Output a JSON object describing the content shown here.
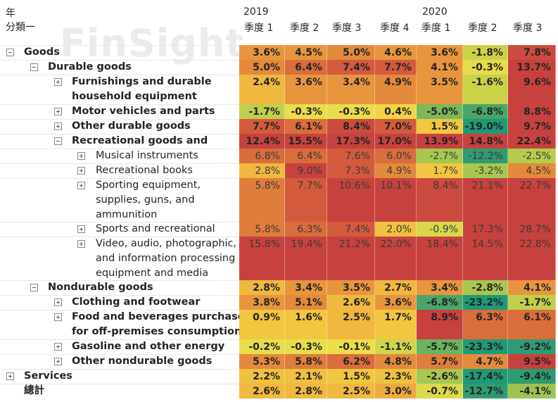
{
  "header": {
    "row_label_1": "年",
    "row_label_2": "分類一",
    "years": [
      "2019",
      "2020"
    ],
    "quarters": [
      "季度 1",
      "季度 2",
      "季度 3",
      "季度 4",
      "季度 1",
      "季度 2",
      "季度 3"
    ]
  },
  "watermark": "FinSight",
  "rows": [
    {
      "level": 0,
      "exp": "minus",
      "bold": true,
      "lines": [
        "Goods"
      ],
      "values": [
        "3.6%",
        "4.5%",
        "5.0%",
        "4.6%",
        "3.6%",
        "-1.8%",
        "7.8%"
      ],
      "colors": [
        "#e8963d",
        "#e8963d",
        "#e38a3c",
        "#e8963d",
        "#e8963d",
        "#cbd24a",
        "#cc4a3f"
      ]
    },
    {
      "level": 1,
      "exp": "minus",
      "bold": true,
      "lines": [
        "Durable goods"
      ],
      "values": [
        "5.0%",
        "6.4%",
        "7.4%",
        "7.7%",
        "4.1%",
        "-0.3%",
        "13.7%"
      ],
      "colors": [
        "#e38a3c",
        "#d96d3c",
        "#d45a3d",
        "#d45a3d",
        "#e8963d",
        "#e6dc4b",
        "#c7423e"
      ]
    },
    {
      "level": 2,
      "exp": "plus",
      "bold": true,
      "lines": [
        "Furnishings and durable",
        "household equipment"
      ],
      "values": [
        "2.4%",
        "3.6%",
        "3.4%",
        "4.9%",
        "3.5%",
        "-1.6%",
        "9.6%"
      ],
      "colors": [
        "#f0b83f",
        "#e8963d",
        "#e8963d",
        "#e38a3c",
        "#e8963d",
        "#cbd24a",
        "#c7423e"
      ]
    },
    {
      "level": 2,
      "exp": "plus",
      "bold": true,
      "lines": [
        "Motor vehicles and parts"
      ],
      "values": [
        "-1.7%",
        "-0.3%",
        "-0.3%",
        "0.4%",
        "-5.0%",
        "-6.8%",
        "8.8%"
      ],
      "colors": [
        "#bfd04c",
        "#e8de4b",
        "#e8de4b",
        "#f0d448",
        "#7cb85c",
        "#4aa56a",
        "#c7423e"
      ]
    },
    {
      "level": 2,
      "exp": "plus",
      "bold": true,
      "lines": [
        "Other durable goods"
      ],
      "values": [
        "7.7%",
        "6.1%",
        "8.4%",
        "7.0%",
        "1.5%",
        "-19.0%",
        "9.7%"
      ],
      "colors": [
        "#d45a3d",
        "#da6e3c",
        "#cc4a3f",
        "#d45a3d",
        "#f3c63f",
        "#1f9a76",
        "#c7423e"
      ]
    },
    {
      "level": 2,
      "exp": "minus",
      "bold": true,
      "lines": [
        "Recreational goods and"
      ],
      "values": [
        "12.4%",
        "15.5%",
        "17.3%",
        "17.0%",
        "13.9%",
        "14.8%",
        "22.4%"
      ],
      "colors": [
        "#c7423e",
        "#c7423e",
        "#c7423e",
        "#c7423e",
        "#c7423e",
        "#c7423e",
        "#c7423e"
      ]
    },
    {
      "level": 3,
      "exp": "plus",
      "bold": false,
      "lines": [
        "Musical instruments"
      ],
      "values": [
        "6.8%",
        "6.4%",
        "7.6%",
        "6.0%",
        "-2.7%",
        "-12.2%",
        "-2.5%"
      ],
      "colors": [
        "#d96d3c",
        "#d96d3c",
        "#d45a3d",
        "#da6e3c",
        "#a8c750",
        "#2e9b72",
        "#b5cc4f"
      ]
    },
    {
      "level": 3,
      "exp": "plus",
      "bold": false,
      "lines": [
        "Recreational books"
      ],
      "values": [
        "2.8%",
        "9.0%",
        "7.3%",
        "4.9%",
        "1.7%",
        "-3.2%",
        "4.5%"
      ],
      "colors": [
        "#f0b83f",
        "#c7423e",
        "#d45a3d",
        "#e38a3c",
        "#f3c63f",
        "#a8c750",
        "#e38a3c"
      ]
    },
    {
      "level": 3,
      "exp": "plus",
      "bold": false,
      "lines": [
        "Sporting equipment,",
        "supplies, guns, and",
        "ammunition"
      ],
      "values": [
        "5.8%",
        "7.7%",
        "10.6%",
        "10.1%",
        "8.4%",
        "21.1%",
        "22.7%"
      ],
      "colors": [
        "#df7d3c",
        "#d45a3d",
        "#c7423e",
        "#c7423e",
        "#cc4a3f",
        "#c7423e",
        "#c7423e"
      ]
    },
    {
      "level": 3,
      "exp": "plus",
      "bold": false,
      "lines": [
        "Sports and recreational"
      ],
      "values": [
        "5.8%",
        "6.3%",
        "7.4%",
        "2.0%",
        "-0.9%",
        "17.3%",
        "28.7%"
      ],
      "colors": [
        "#df7d3c",
        "#d96d3c",
        "#d45a3d",
        "#f0c040",
        "#d8d84b",
        "#c7423e",
        "#c7423e"
      ]
    },
    {
      "level": 3,
      "exp": "plus",
      "bold": false,
      "lines": [
        "Video, audio, photographic,",
        "and information processing",
        "equipment and media"
      ],
      "values": [
        "15.8%",
        "19.4%",
        "21.2%",
        "22.0%",
        "18.4%",
        "14.5%",
        "22.8%"
      ],
      "colors": [
        "#c7423e",
        "#c7423e",
        "#c7423e",
        "#c7423e",
        "#c7423e",
        "#c7423e",
        "#c7423e"
      ]
    },
    {
      "level": 1,
      "exp": "minus",
      "bold": true,
      "lines": [
        "Nondurable goods"
      ],
      "values": [
        "2.8%",
        "3.4%",
        "3.5%",
        "2.7%",
        "3.4%",
        "-2.8%",
        "4.1%"
      ],
      "colors": [
        "#f0b83f",
        "#e8963d",
        "#e8963d",
        "#f0b83f",
        "#e8963d",
        "#a8c750",
        "#e8963d"
      ]
    },
    {
      "level": 2,
      "exp": "plus",
      "bold": true,
      "lines": [
        "Clothing and footwear"
      ],
      "values": [
        "3.8%",
        "5.1%",
        "2.6%",
        "3.6%",
        "-6.8%",
        "-23.2%",
        "-1.7%"
      ],
      "colors": [
        "#e8963d",
        "#e38a3c",
        "#f0b83f",
        "#e8963d",
        "#4aa56a",
        "#1f9a76",
        "#bfd04c"
      ]
    },
    {
      "level": 2,
      "exp": "plus",
      "bold": true,
      "lines": [
        "Food and beverages purchased",
        "for off-premises consumption"
      ],
      "values": [
        "0.9%",
        "1.6%",
        "2.5%",
        "1.7%",
        "8.9%",
        "6.3%",
        "6.1%"
      ],
      "colors": [
        "#f3c63f",
        "#f3c63f",
        "#f0b83f",
        "#f3c63f",
        "#c7423e",
        "#d96d3c",
        "#da6e3c"
      ]
    },
    {
      "level": 2,
      "exp": "plus",
      "bold": true,
      "lines": [
        "Gasoline and other energy"
      ],
      "values": [
        "-0.2%",
        "-0.3%",
        "-0.1%",
        "-1.1%",
        "-5.7%",
        "-23.3%",
        "-9.2%"
      ],
      "colors": [
        "#e8de4b",
        "#e8de4b",
        "#eedd4a",
        "#d1d54a",
        "#6cb35e",
        "#1f9a76",
        "#2e9b72"
      ]
    },
    {
      "level": 2,
      "exp": "plus",
      "bold": true,
      "lines": [
        "Other nondurable goods"
      ],
      "values": [
        "5.3%",
        "5.8%",
        "6.2%",
        "4.8%",
        "5.7%",
        "4.7%",
        "9.5%"
      ],
      "colors": [
        "#e38a3c",
        "#df7d3c",
        "#da6e3c",
        "#e38a3c",
        "#df7d3c",
        "#e38a3c",
        "#c7423e"
      ]
    },
    {
      "level": 0,
      "exp": "plus",
      "bold": true,
      "lines": [
        "Services"
      ],
      "values": [
        "2.2%",
        "2.1%",
        "1.5%",
        "2.3%",
        "-2.6%",
        "-17.4%",
        "-9.4%"
      ],
      "colors": [
        "#f0c040",
        "#f0c040",
        "#f3c63f",
        "#f0c040",
        "#a8c750",
        "#1f9a76",
        "#2e9b72"
      ]
    },
    {
      "level": 0,
      "exp": "none",
      "bold": true,
      "total": true,
      "lines": [
        "總計"
      ],
      "values": [
        "2.6%",
        "2.8%",
        "2.5%",
        "3.0%",
        "-0.7%",
        "-12.7%",
        "-4.1%"
      ],
      "colors": [
        "#f0b83f",
        "#f0b83f",
        "#f0b83f",
        "#eeaa3e",
        "#dcd94b",
        "#2e9b72",
        "#9bc352"
      ]
    }
  ]
}
